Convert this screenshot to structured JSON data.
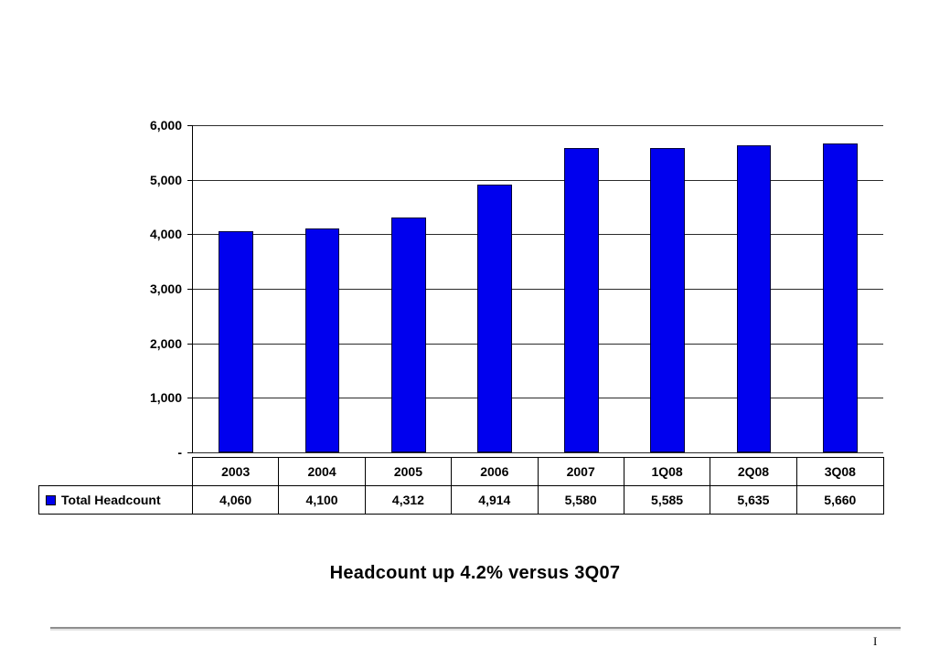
{
  "chart_data": {
    "type": "bar",
    "categories": [
      "2003",
      "2004",
      "2005",
      "2006",
      "2007",
      "1Q08",
      "2Q08",
      "3Q08"
    ],
    "series": [
      {
        "name": "Total Headcount",
        "values": [
          4060,
          4100,
          4312,
          4914,
          5580,
          5585,
          5635,
          5660
        ]
      }
    ],
    "value_labels": [
      "4,060",
      "4,100",
      "4,312",
      "4,914",
      "5,580",
      "5,585",
      "5,635",
      "5,660"
    ],
    "yticks": [
      {
        "value": 6000,
        "label": "6,000"
      },
      {
        "value": 5000,
        "label": "5,000"
      },
      {
        "value": 4000,
        "label": "4,000"
      },
      {
        "value": 3000,
        "label": "3,000"
      },
      {
        "value": 2000,
        "label": "2,000"
      },
      {
        "value": 1000,
        "label": "1,000"
      },
      {
        "value": 0,
        "label": "-"
      }
    ],
    "ylim": [
      0,
      6000
    ],
    "grid": true,
    "legend": {
      "label": "Total Headcount",
      "position": "bottom-left"
    },
    "bar_color": "#0000ee",
    "grid_color": "#2b2b2b",
    "title": "",
    "xlabel": "",
    "ylabel": ""
  },
  "caption": "Headcount up 4.2% versus 3Q07",
  "footer": {
    "page_marker": "I"
  }
}
